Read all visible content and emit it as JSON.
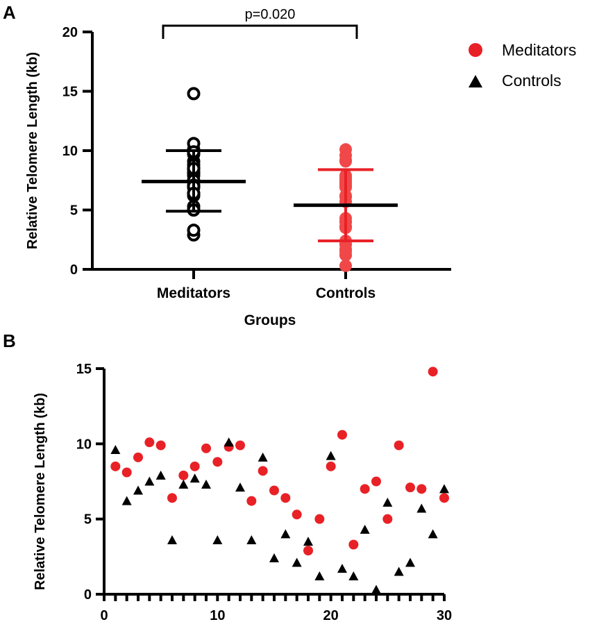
{
  "panels": {
    "a_label": "A",
    "b_label": "B"
  },
  "legend": {
    "items": [
      {
        "label": "Meditators",
        "color": "#e82127",
        "marker": "circle"
      },
      {
        "label": "Controls",
        "color": "#000000",
        "marker": "triangle"
      }
    ]
  },
  "chart_data": [
    {
      "panel": "A",
      "type": "scatter",
      "title": "",
      "xlabel": "Groups",
      "ylabel": "Relative Telomere Length (kb)",
      "ylim": [
        0,
        20
      ],
      "yticks": [
        0,
        5,
        10,
        15,
        20
      ],
      "categories": [
        "Meditators",
        "Controls"
      ],
      "annotation": "p=0.020",
      "series": [
        {
          "name": "Meditators",
          "category": "Meditators",
          "color": "#000000",
          "marker": "open-circle",
          "mean": 7.4,
          "error_upper": 10.0,
          "error_lower": 4.9,
          "error_color": "#000000",
          "values": [
            8.5,
            8.1,
            9.1,
            10.1,
            9.9,
            6.4,
            7.9,
            8.5,
            9.7,
            8.8,
            9.8,
            9.9,
            6.2,
            8.2,
            6.9,
            6.4,
            5.3,
            2.9,
            5.0,
            8.5,
            10.6,
            3.3,
            7.0,
            7.5,
            5.0,
            9.9,
            7.1,
            7.0,
            14.8,
            6.4
          ]
        },
        {
          "name": "Controls",
          "category": "Controls",
          "color": "#f04848",
          "marker": "filled-circle",
          "mean": 5.4,
          "error_upper": 8.4,
          "error_lower": 2.4,
          "error_color": "#e82127",
          "values": [
            9.6,
            6.2,
            6.9,
            7.5,
            7.9,
            3.6,
            7.3,
            7.7,
            7.3,
            3.6,
            10.1,
            7.1,
            3.6,
            9.1,
            2.4,
            4.0,
            2.1,
            3.5,
            1.2,
            9.2,
            1.7,
            1.2,
            4.3,
            0.3,
            6.1,
            1.5,
            2.1,
            5.7,
            4.0,
            7.0
          ]
        }
      ]
    },
    {
      "panel": "B",
      "type": "scatter",
      "title": "",
      "xlabel": "",
      "ylabel": "Relative Telomere Length (kb)",
      "xlim": [
        0,
        30
      ],
      "ylim": [
        0,
        15
      ],
      "xticks": [
        0,
        10,
        20,
        30
      ],
      "yticks": [
        0,
        5,
        10,
        15
      ],
      "x": [
        1,
        2,
        3,
        4,
        5,
        6,
        7,
        8,
        9,
        10,
        11,
        12,
        13,
        14,
        15,
        16,
        17,
        18,
        19,
        20,
        21,
        22,
        23,
        24,
        25,
        26,
        27,
        28,
        29,
        30
      ],
      "series": [
        {
          "name": "Meditators",
          "color": "#e82127",
          "marker": "circle",
          "values": [
            8.5,
            8.1,
            9.1,
            10.1,
            9.9,
            6.4,
            7.9,
            8.5,
            9.7,
            8.8,
            9.8,
            9.9,
            6.2,
            8.2,
            6.9,
            6.4,
            5.3,
            2.9,
            5.0,
            8.5,
            10.6,
            3.3,
            7.0,
            7.5,
            5.0,
            9.9,
            7.1,
            7.0,
            14.8,
            6.4
          ]
        },
        {
          "name": "Controls",
          "color": "#000000",
          "marker": "triangle",
          "values": [
            9.6,
            6.2,
            6.9,
            7.5,
            7.9,
            3.6,
            7.3,
            7.7,
            7.3,
            3.6,
            10.1,
            7.1,
            3.6,
            9.1,
            2.4,
            4.0,
            2.1,
            3.5,
            1.2,
            9.2,
            1.7,
            1.2,
            4.3,
            0.3,
            6.1,
            1.5,
            2.1,
            5.7,
            4.0,
            7.0
          ]
        }
      ]
    }
  ]
}
